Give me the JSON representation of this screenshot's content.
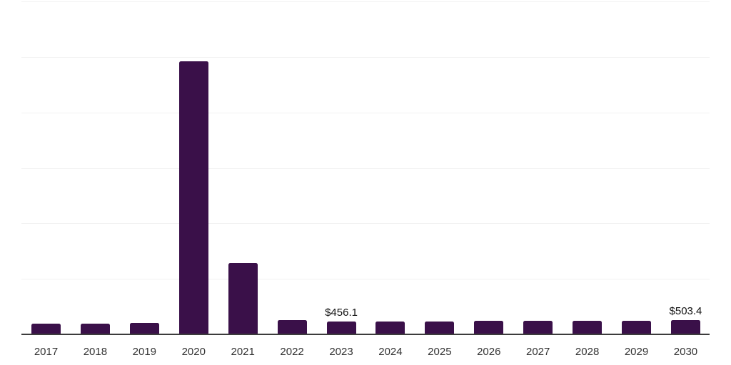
{
  "chart_data": {
    "type": "bar",
    "title": "",
    "xlabel": "",
    "ylabel": "",
    "legend": "none",
    "grid": "horizontal",
    "gridline_count": 6,
    "ylim": [
      0,
      12000
    ],
    "categories": [
      "2017",
      "2018",
      "2019",
      "2020",
      "2021",
      "2022",
      "2023",
      "2024",
      "2025",
      "2026",
      "2027",
      "2028",
      "2029",
      "2030"
    ],
    "values": [
      390,
      395,
      400,
      9840,
      2570,
      515,
      456.1,
      463,
      470,
      476,
      483,
      490,
      497,
      503.4
    ],
    "value_labels": {
      "2023": "$456.1",
      "2030": "$503.4"
    }
  },
  "colors": {
    "bar": "#3a1049",
    "axis_line": "#3c3c3c",
    "gridline": "#f2f2f2",
    "tick_label": "#333333",
    "value_label": "#111111",
    "background": "#ffffff"
  }
}
